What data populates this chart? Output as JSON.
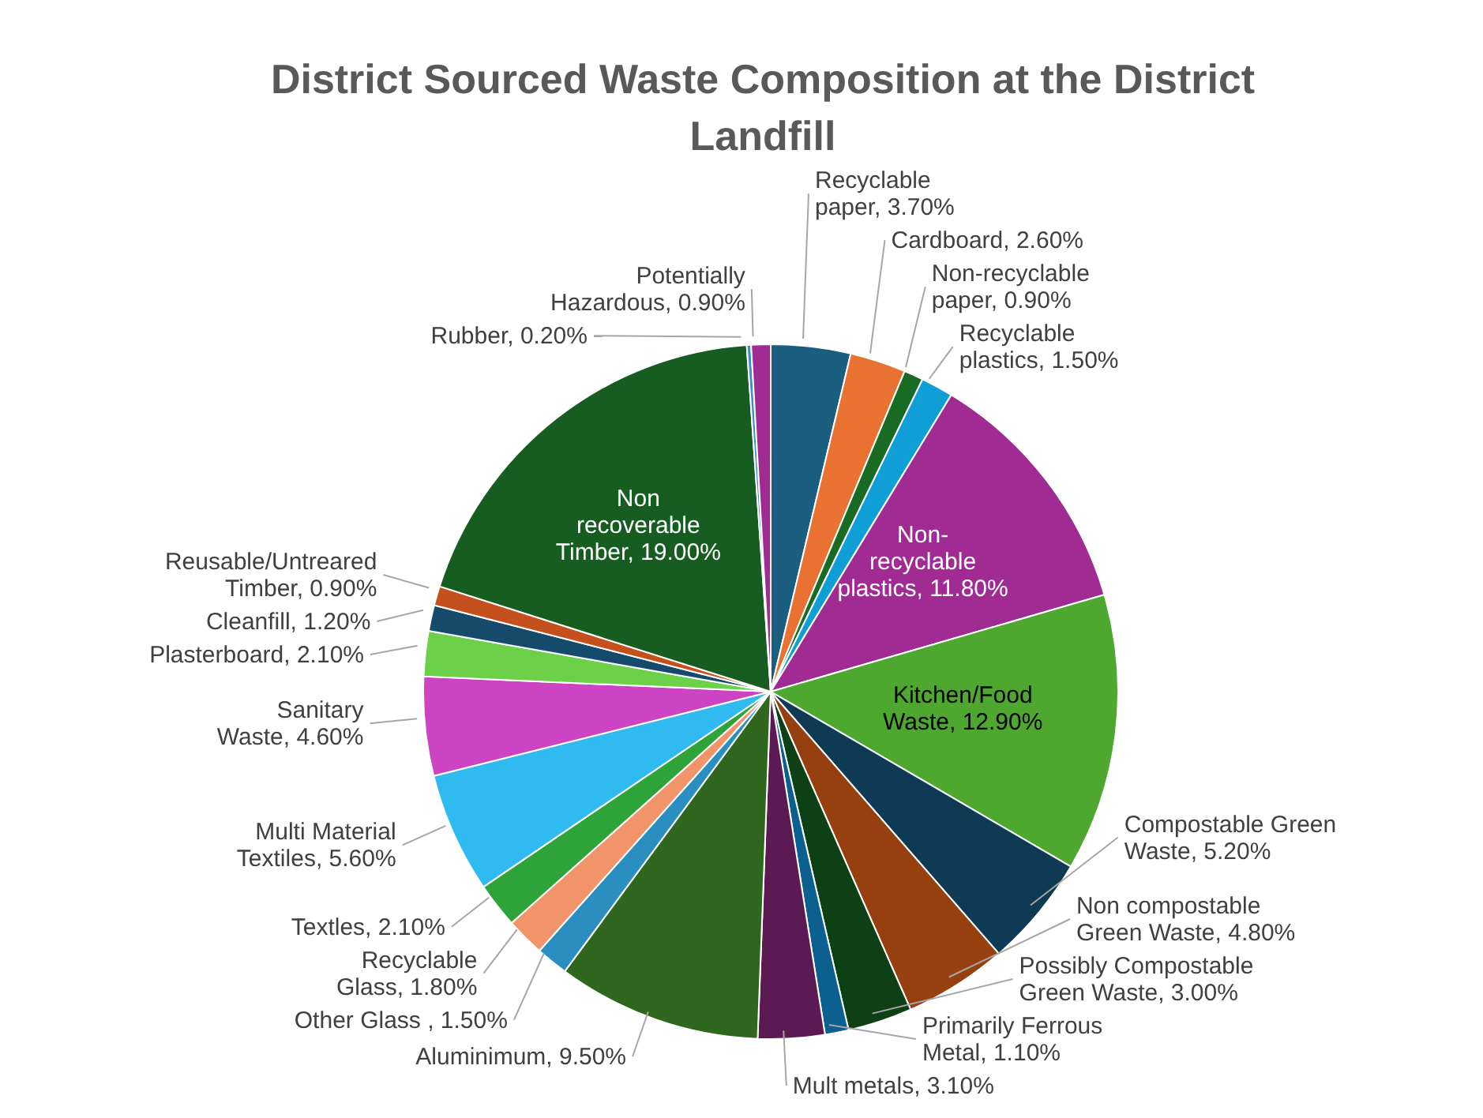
{
  "chart_data": {
    "type": "pie",
    "title": "District Sourced Waste Composition at the District Landfill",
    "categories": [
      "Recyclable paper",
      "Cardboard",
      "Non-recyclable paper",
      "Recyclable plastics",
      "Non-recyclable plastics",
      "Kitchen/Food Waste",
      "Compostable Green Waste",
      "Non compostable Green Waste",
      "Possibly Compostable Green Waste",
      "Primarily Ferrous Metal",
      "Mult metals",
      "Aluminimum",
      "Other Glass ",
      "Recyclable Glass",
      "Textles",
      "Multi Material Textiles",
      "Sanitary Waste",
      "Plasterboard",
      "Cleanfill",
      "Reusable/Untreared Timber",
      "Non recoverable Timber",
      "Rubber",
      "Potentially Hazardous"
    ],
    "values": [
      3.7,
      2.6,
      0.9,
      1.5,
      11.8,
      12.9,
      5.2,
      4.8,
      3.0,
      1.1,
      3.1,
      9.5,
      1.5,
      1.8,
      2.1,
      5.6,
      4.6,
      2.1,
      1.2,
      0.9,
      19.0,
      0.2,
      0.9
    ],
    "value_labels": [
      "3.70%",
      "2.60%",
      "0.90%",
      "1.50%",
      "11.80%",
      "12.90%",
      "5.20%",
      "4.80%",
      "3.00%",
      "1.10%",
      "3.10%",
      "9.50%",
      "1.50%",
      "1.80%",
      "2.10%",
      "5.60%",
      "4.60%",
      "2.10%",
      "1.20%",
      "0.90%",
      "19.00%",
      "0.20%",
      "0.90%"
    ],
    "colors": [
      "#1a5e80",
      "#e97132",
      "#196b24",
      "#0f9ed5",
      "#a02b93",
      "#4ea72e",
      "#0e3a53",
      "#96400f",
      "#0e4015",
      "#0b6090",
      "#5c1a55",
      "#30671e",
      "#2a8fc0",
      "#f1946a",
      "#2ea33a",
      "#2fbbef",
      "#cc44c4",
      "#6cd048",
      "#164a6b",
      "#c4501e",
      "#175c20",
      "#3d8ec9",
      "#a02b93"
    ],
    "legend": false
  }
}
